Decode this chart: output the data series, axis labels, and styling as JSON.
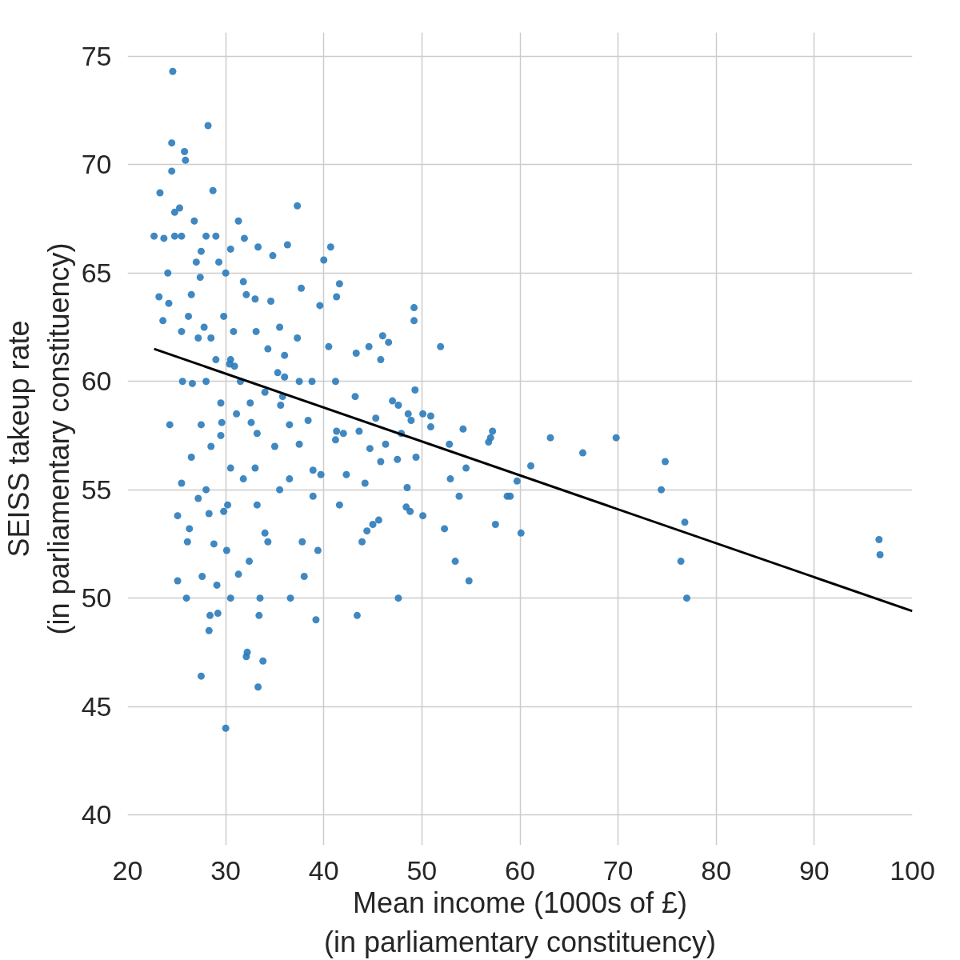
{
  "chart_data": {
    "type": "scatter",
    "xlabel": "Mean income (1000s of £)\n(in parliamentary constituency)",
    "ylabel": "SEISS takeup rate\n(in parliamentary constituency)",
    "xlim": [
      20,
      100
    ],
    "ylim": [
      38.6,
      76.1
    ],
    "xticks": [
      20,
      30,
      40,
      50,
      60,
      70,
      80,
      90,
      100
    ],
    "yticks": [
      40,
      45,
      50,
      55,
      60,
      65,
      70,
      75
    ],
    "grid": true,
    "series": [
      {
        "marker": "circle",
        "color": "#2b7bba",
        "x": [
          96.6,
          96.7,
          77,
          76.4,
          76.8,
          74.8,
          74.4,
          69.8,
          66.4,
          63.1,
          61.1,
          60.1,
          59.7,
          59,
          58.7,
          57.5,
          57.2,
          57,
          56.8,
          54.8,
          54.5,
          54.2,
          53.8,
          53.4,
          52.9,
          52.8,
          52.3,
          51.9,
          50.9,
          50.9,
          50.1,
          50.1,
          49.4,
          49.3,
          49.2,
          49.2,
          48.9,
          48.6,
          48.8,
          48.4,
          48.5,
          47.9,
          47.6,
          47.5,
          47.6,
          47,
          46.6,
          46.3,
          46,
          45.8,
          45.8,
          45.6,
          45.3,
          45,
          44.7,
          44.6,
          44.4,
          44.2,
          43.9,
          43.4,
          43.3,
          43.2,
          43.6,
          42.3,
          42,
          41.6,
          41.2,
          41.3,
          41.2,
          41.6,
          41.3,
          40.7,
          40.5,
          40,
          39.7,
          39.4,
          39.2,
          39.6,
          38.9,
          38.9,
          38.4,
          38,
          37.8,
          37.7,
          37.3,
          37.3,
          37.5,
          36.6,
          36.5,
          36.3,
          36,
          35.5,
          35.6,
          35.3,
          34.8,
          34.6,
          34.3,
          34,
          33.8,
          33.5,
          33.3,
          33.4,
          33.3,
          33.1,
          33.2,
          32.6,
          32.2,
          32.1,
          32.4,
          32.1,
          31.9,
          31.3,
          31.3,
          30.9,
          30.5,
          30.2,
          30,
          30.1,
          29.8,
          29.6,
          29.2,
          29.1,
          28.7,
          28.5,
          28.4,
          28.3,
          28.2,
          28.3,
          28,
          27.6,
          27.5,
          27.4,
          27,
          26.6,
          26.3,
          26,
          26.1,
          25.9,
          25.8,
          25.6,
          25.5,
          25.1,
          25.1,
          24.6,
          24.5,
          24.5,
          24.3,
          24.2,
          24.1,
          23.7,
          23.3,
          23.2,
          23.6,
          22.7,
          24.8,
          25.5,
          28,
          29,
          30.5,
          26.5,
          27.8,
          29,
          30.5,
          31.5,
          32.5,
          29.5,
          27.5,
          28.5,
          26.5,
          30.5,
          33,
          35,
          36.5,
          37.5,
          34,
          36,
          28,
          27.2,
          25.5,
          26.2,
          30.8,
          31.8,
          30,
          27.5,
          29.3,
          26.8,
          25.3,
          24.8,
          33,
          34.3,
          35.5,
          29.8,
          31.8,
          33.2,
          35.8,
          38.8,
          28.8,
          27.2,
          31.1,
          29.5,
          30.4
        ],
        "values": [
          52.7,
          52,
          50,
          51.7,
          53.5,
          56.3,
          55,
          57.4,
          56.7,
          57.4,
          56.1,
          53,
          55.4,
          54.7,
          54.7,
          53.4,
          57.7,
          57.4,
          57.2,
          50.8,
          56,
          57.8,
          54.7,
          51.7,
          55.5,
          57.1,
          53.2,
          61.6,
          57.9,
          58.4,
          58.5,
          53.8,
          56.5,
          59.6,
          63.4,
          62.8,
          58.2,
          58.5,
          54,
          54.2,
          55.1,
          57.6,
          50,
          56.4,
          58.9,
          59.1,
          61.8,
          57.1,
          62.1,
          61,
          56.3,
          53.6,
          58.3,
          53.4,
          56.9,
          61.6,
          53.1,
          55.3,
          52.6,
          49.2,
          61.3,
          59.3,
          57.7,
          55.7,
          57.6,
          54.3,
          57.3,
          57.7,
          60,
          64.5,
          63.9,
          66.2,
          61.6,
          65.6,
          55.7,
          52.2,
          49,
          63.5,
          55.9,
          54.7,
          58.2,
          51,
          52.6,
          64.3,
          68.1,
          62,
          60,
          50,
          55.5,
          66.3,
          61.2,
          55,
          58.9,
          60.4,
          65.8,
          63.7,
          52.6,
          53,
          47.1,
          50,
          45.9,
          49.2,
          66.2,
          62.3,
          57.6,
          58.1,
          47.5,
          47.3,
          51.7,
          64,
          66.6,
          67.4,
          51.1,
          60.7,
          50,
          54.3,
          44,
          52.2,
          63,
          58.1,
          49.3,
          50.6,
          68.8,
          62,
          49.2,
          48.5,
          71.8,
          53.9,
          55,
          51,
          46.4,
          64.8,
          65.5,
          59.9,
          53.2,
          50,
          52.6,
          70.2,
          70.6,
          60,
          55.3,
          50.8,
          53.8,
          74.3,
          71,
          69.7,
          58,
          63.6,
          65,
          66.6,
          68.7,
          63.9,
          62.8,
          66.7,
          66.7,
          66.7,
          66.7,
          66.7,
          66.1,
          64,
          62.5,
          61,
          61,
          60,
          59,
          59,
          58,
          57,
          56.5,
          56,
          56,
          57,
          58,
          57.1,
          59.5,
          60.2,
          60,
          62,
          62.3,
          63,
          62.3,
          64.6,
          65,
          66,
          65.5,
          67.4,
          68,
          67.8,
          63.8,
          61.5,
          62.5,
          54,
          55.5,
          54.3,
          59.3,
          60,
          52.5,
          54.6,
          58.5,
          57.5,
          60.8
        ]
      },
      {
        "type": "line",
        "marker": "none",
        "color": "#000000",
        "x": [
          22.7,
          100
        ],
        "values": [
          61.5,
          49.4
        ]
      }
    ]
  }
}
